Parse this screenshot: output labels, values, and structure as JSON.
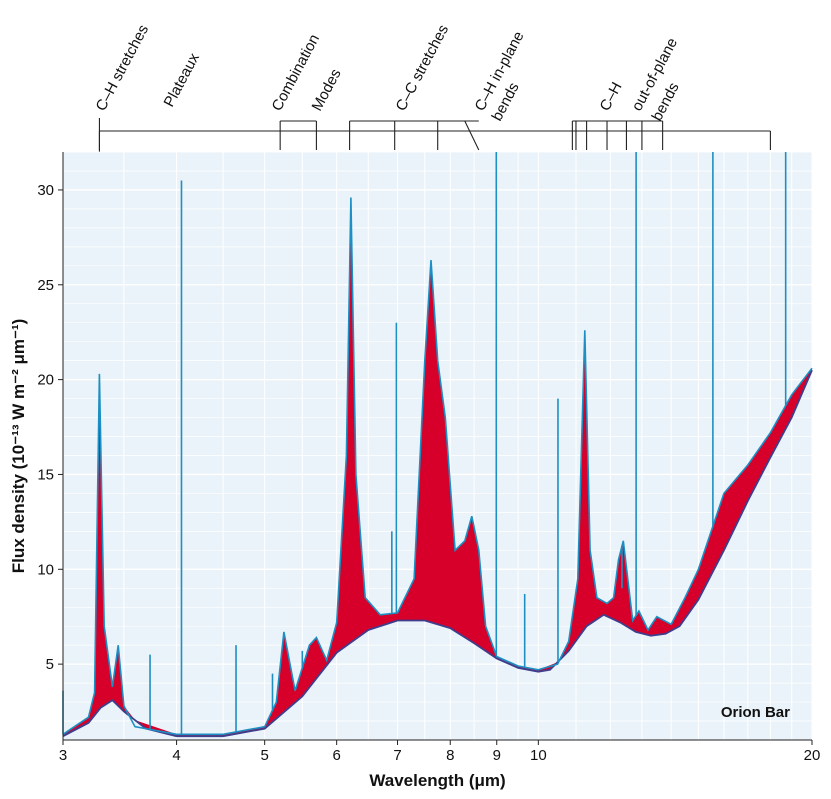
{
  "chart_data": {
    "type": "area",
    "annotation": "Orion Bar",
    "xlabel": "Wavelength (μm)",
    "ylabel": "Flux density (10⁻¹³ W m⁻² μm⁻¹)",
    "x_scale": "log",
    "xlim": [
      3,
      20
    ],
    "ylim": [
      1,
      32
    ],
    "x_ticks": [
      "3",
      "4",
      "5",
      "6",
      "7",
      "8",
      "9",
      "10",
      "20"
    ],
    "y_ticks": [
      "5",
      "10",
      "15",
      "20",
      "25",
      "30"
    ],
    "grid": true,
    "colors": {
      "background": "#eaf3f9",
      "grid": "#ffffff",
      "spectrum": "#1d8fc2",
      "continuum": "#3f3d8c",
      "feature_fill": "#d6002a"
    },
    "band_labels": [
      "C–H stretches",
      "Plateaux",
      "Combination",
      "Modes",
      "C–C stretches",
      "C–H in-plane",
      "bends",
      "C–H",
      "out-of-plane",
      "bends"
    ],
    "series": [
      {
        "role": "continuum",
        "x": [
          3.0,
          3.2,
          3.3,
          3.4,
          3.5,
          3.7,
          4.0,
          4.5,
          5.0,
          5.5,
          6.0,
          6.5,
          7.0,
          7.5,
          8.0,
          8.5,
          9.0,
          9.5,
          10.0,
          10.3,
          10.8,
          11.3,
          11.8,
          12.3,
          12.8,
          13.3,
          13.8,
          14.3,
          15.0,
          16.0,
          17.0,
          18.0,
          19.0,
          20.0
        ],
        "y": [
          1.2,
          1.9,
          2.7,
          3.1,
          2.5,
          1.6,
          1.2,
          1.2,
          1.6,
          3.3,
          5.6,
          6.8,
          7.3,
          7.3,
          6.9,
          6.1,
          5.3,
          4.8,
          4.6,
          4.7,
          5.7,
          7.0,
          7.6,
          7.2,
          6.7,
          6.5,
          6.6,
          7.0,
          8.4,
          11.0,
          13.6,
          15.9,
          18.0,
          20.5
        ]
      },
      {
        "role": "spectrum",
        "x": [
          3.0,
          3.2,
          3.25,
          3.29,
          3.33,
          3.4,
          3.45,
          3.5,
          3.6,
          4.0,
          4.5,
          5.0,
          5.15,
          5.25,
          5.4,
          5.6,
          5.7,
          5.85,
          6.0,
          6.15,
          6.22,
          6.3,
          6.45,
          6.7,
          7.0,
          7.3,
          7.5,
          7.62,
          7.75,
          7.9,
          8.1,
          8.3,
          8.45,
          8.6,
          8.75,
          9.0,
          9.5,
          10.0,
          10.5,
          10.8,
          11.05,
          11.25,
          11.4,
          11.6,
          11.9,
          12.1,
          12.25,
          12.4,
          12.7,
          12.9,
          13.2,
          13.5,
          14.0,
          14.5,
          15.0,
          16.0,
          17.0,
          18.0,
          19.0,
          20.0
        ],
        "y": [
          1.3,
          2.2,
          3.5,
          20.3,
          7.0,
          3.8,
          6.0,
          2.8,
          1.7,
          1.3,
          1.3,
          1.7,
          3.0,
          6.7,
          3.6,
          6.0,
          6.4,
          5.2,
          7.2,
          16.0,
          29.6,
          15.0,
          8.5,
          7.6,
          7.7,
          9.5,
          21.0,
          26.3,
          21.0,
          18.0,
          11.0,
          11.5,
          12.8,
          11.0,
          7.0,
          5.4,
          4.9,
          4.7,
          5.0,
          6.2,
          9.5,
          22.6,
          11.0,
          8.5,
          8.2,
          8.5,
          10.5,
          11.5,
          7.3,
          7.8,
          6.8,
          7.5,
          7.1,
          8.5,
          10.0,
          14.0,
          15.5,
          17.2,
          19.2,
          20.6
        ]
      },
      {
        "role": "emission-lines",
        "x": [
          3.0,
          3.74,
          4.05,
          4.65,
          5.1,
          5.5,
          6.9,
          6.98,
          8.99,
          9.66,
          10.51,
          12.36,
          12.81,
          15.56,
          18.71
        ],
        "y": [
          3.6,
          5.5,
          30.5,
          6.0,
          4.5,
          5.7,
          12.0,
          23.0,
          32.0,
          8.7,
          19.0,
          9.0,
          32.0,
          32.0,
          32.0
        ]
      }
    ]
  }
}
